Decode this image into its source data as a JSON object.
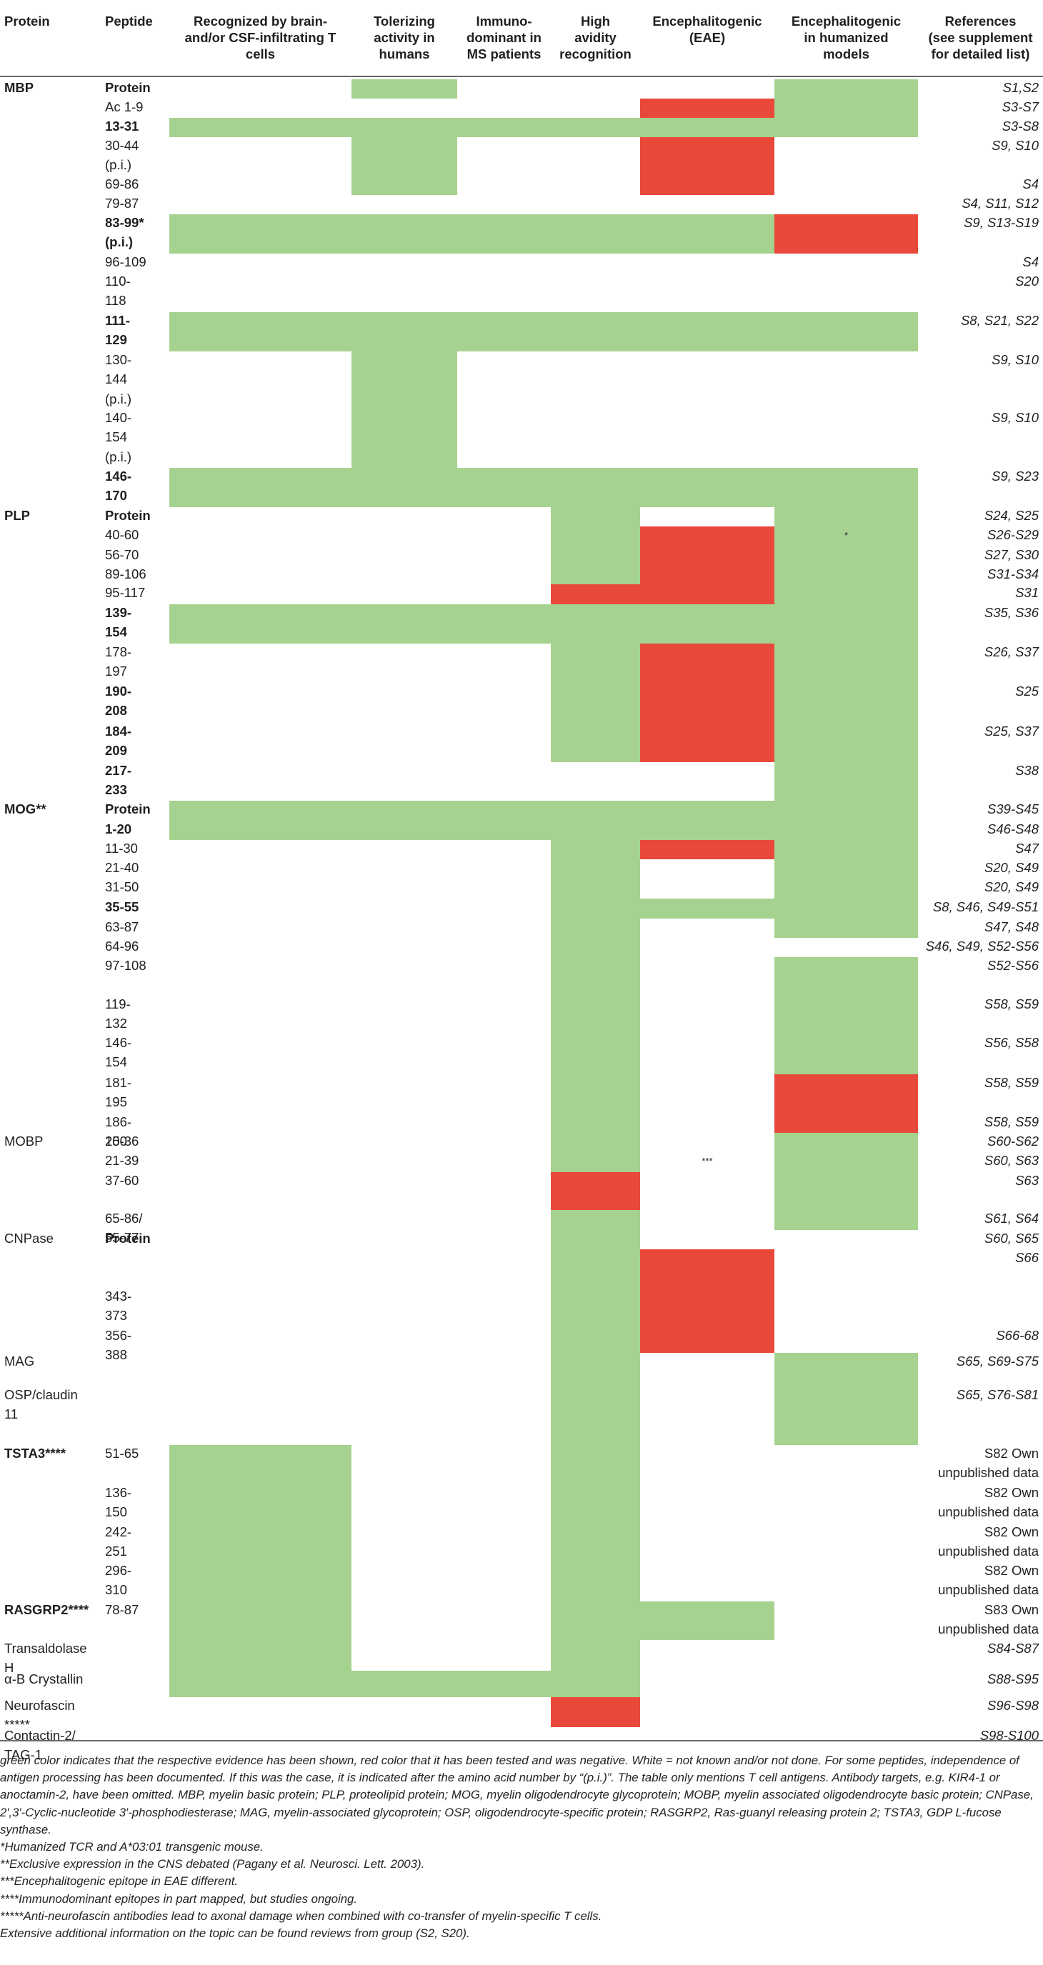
{
  "colors": {
    "positive": "#a6d28f",
    "negative": "#e8493a"
  },
  "header": {
    "protein": "Protein",
    "peptide": "Peptide",
    "c1": [
      "Recognized by brain-",
      "and/or CSF-infiltrating T",
      "cells"
    ],
    "c2": [
      "Tolerizing",
      "activity in",
      "humans"
    ],
    "c3": [
      "Immuno-",
      "dominant in",
      "MS patients"
    ],
    "c4": [
      "High",
      "avidity",
      "recognition"
    ],
    "c5": [
      "Encephalitogenic",
      "(EAE)"
    ],
    "c6": [
      "Encephalitogenic",
      "in humanized",
      "models"
    ],
    "c7": [
      "References",
      "(see supplement",
      "for detailed list)"
    ]
  },
  "rows": [
    {
      "protein": "MBP",
      "pb": true,
      "peptide": "Protein",
      "bold": true,
      "refs": "S1,S2",
      "cells": "0g000ggr0g00"
    },
    {
      "peptide": "Ac 1-9",
      "refs": "S3-S7",
      "cells": "0000rgg00g00"
    },
    {
      "peptide": "13-31",
      "bold": true,
      "refs": "S3-S8",
      "cells": "gggggggg0g00"
    },
    {
      "peptide": [
        "30-44",
        "(p.i.)"
      ],
      "refs": "S9, S10",
      "cells": "0g00r00g00"
    },
    {
      "peptide": "69-86",
      "refs": "S4",
      "cells": "0g00r00g00"
    },
    {
      "peptide": "79-87",
      "refs": "S4, S11, S12",
      "cells": "0000000g00"
    },
    {
      "peptide": [
        "83-99*",
        "(p.i.)"
      ],
      "bold": true,
      "refs": "S9, S13-S19",
      "cells": "gggggr0gg"
    },
    {
      "peptide": "96-109",
      "refs": "S4",
      "cells": "0000000g00"
    },
    {
      "peptide": [
        "110-",
        "118"
      ],
      "refs": "S20",
      "cells": "0000000g00"
    },
    {
      "peptide": [
        "111-",
        "129"
      ],
      "bold": true,
      "refs": "S8, S21, S22",
      "cells": "ggggggggg"
    },
    {
      "peptide": [
        "130-",
        "144",
        "(p.i.)"
      ],
      "refs": "S9, S10",
      "cells": "0g000000"
    },
    {
      "peptide": [
        "140-",
        "154",
        "(p.i.)"
      ],
      "refs": "S9, S10",
      "cells": "0g000000"
    },
    {
      "peptide": [
        "146-",
        "170"
      ],
      "bold": true,
      "refs": "S9, S23",
      "cells": "gggggggg0"
    },
    {
      "protein": "PLP",
      "pb": true,
      "peptide": "Protein",
      "bold": true,
      "refs": "S24, S25",
      "cells": "000g0g0"
    },
    {
      "peptide": "40-60",
      "refs": "S26-S29",
      "cells": "000grgg",
      "mark6": "*"
    },
    {
      "peptide": "56-70",
      "refs": "S27, S30",
      "cells": "000grg0"
    },
    {
      "peptide": "89-106",
      "refs": "S31-S34",
      "cells": "000grg0"
    },
    {
      "peptide": "95-117",
      "refs": "S31",
      "cells": "000rrg0"
    },
    {
      "peptide": [
        "139-",
        "154"
      ],
      "bold": true,
      "refs": "S35, S36",
      "cells": "ggggggg"
    },
    {
      "peptide": [
        "178-",
        "197"
      ],
      "refs": "S26, S37",
      "cells": "000grg0"
    },
    {
      "peptide": [
        "190-",
        "208"
      ],
      "bold": true,
      "refs": "S25",
      "cells": "000grg0"
    },
    {
      "peptide": [
        "184-",
        "209"
      ],
      "bold": true,
      "refs": "S25, S37",
      "cells": "000grg0"
    },
    {
      "peptide": [
        "217-",
        "233"
      ],
      "bold": true,
      "refs": "S38",
      "cells": "00000g0"
    },
    {
      "protein": "MOG**",
      "pb": true,
      "peptide": "Protein",
      "bold": true,
      "refs": "S39-S45",
      "cells": "gggggg0"
    },
    {
      "peptide": "1-20",
      "bold": true,
      "refs": "S46-S48",
      "cells": "gggggg0"
    },
    {
      "peptide": "11-30",
      "refs": "S47",
      "cells": "000grg0"
    },
    {
      "peptide": "21-40",
      "refs": "S20, S49",
      "cells": "000g0g0"
    },
    {
      "peptide": "31-50",
      "refs": "S20, S49",
      "cells": "000g0g0"
    },
    {
      "peptide": "35-55",
      "bold": true,
      "refs": "S8, S46, S49-S51",
      "cells": "000ggg0"
    },
    {
      "peptide": "63-87",
      "refs": "S47, S48",
      "cells": "000g0g0"
    },
    {
      "peptide": "64-96",
      "refs": "S46, S49, S52-S56",
      "cells": "000g0000"
    },
    {
      "peptide": "97-108",
      "refs": "S52-S56",
      "cells": "000g0gg"
    },
    {
      "peptide": [
        "119-",
        "132"
      ],
      "refs": "S58, S59",
      "cells": "000g0g0"
    },
    {
      "peptide": [
        "146-",
        "154"
      ],
      "refs": "S56, S58",
      "cells": "000g0g0"
    },
    {
      "peptide": [
        "181-",
        "195"
      ],
      "refs": "S58, S59",
      "cells": "000g0r0"
    },
    {
      "peptide": [
        "186-",
        "200"
      ],
      "refs": "S58, S59",
      "cells": "000g0r0"
    },
    {
      "protein": "MOBP",
      "peptide": "15-36",
      "refs": "S60-S62",
      "cells": "000g0gg"
    },
    {
      "peptide": "21-39",
      "refs": "S60, S63",
      "cells": "000g0g0",
      "mark5": "***"
    },
    {
      "peptide": "37-60",
      "refs": "S63",
      "cells": "000r0g0"
    },
    {
      "peptide": [
        "65-86/",
        "55-77"
      ],
      "refs": "S61, S64",
      "cells": "000g0gg"
    },
    {
      "protein": "CNPase",
      "peptide": "Protein",
      "bold": true,
      "refs": "S60, S65",
      "cells": "000g000"
    },
    {
      "peptide": "",
      "refs": "S66",
      "cells": "000gr00"
    },
    {
      "peptide": [
        "343-",
        "373"
      ],
      "refs": "",
      "cells": "000gr00"
    },
    {
      "peptide": [
        "356-",
        "388"
      ],
      "refs": "S66-68",
      "cells": "000gr00"
    },
    {
      "protein": "MAG",
      "peptide": "",
      "refs": "S65, S69-S75",
      "cells": "000g0g0"
    },
    {
      "protein": [
        "OSP/claudin",
        "11"
      ],
      "peptide": "",
      "refs": "S65, S76-S81",
      "cells": "000g0g0"
    },
    {
      "protein": "TSTA3****",
      "pb": true,
      "peptide": "51-65",
      "refs": [
        "S82 Own",
        "unpublished data"
      ],
      "cells": "g00g000"
    },
    {
      "peptide": [
        "136-",
        "150"
      ],
      "refs": [
        "S82 Own",
        "unpublished data"
      ],
      "cells": "g00g000"
    },
    {
      "peptide": [
        "242-",
        "251"
      ],
      "refs": [
        "S82 Own",
        "unpublished data"
      ],
      "cells": "g00g000"
    },
    {
      "peptide": [
        "296-",
        "310"
      ],
      "refs": [
        "S82 Own",
        "unpublished data"
      ],
      "cells": "g00g000"
    },
    {
      "protein": "RASGRP2****",
      "pb": true,
      "peptide": "78-87",
      "refs": [
        "S83 Own",
        "unpublished data"
      ],
      "cells": "g00gg00"
    },
    {
      "protein": [
        "Transaldolase",
        "H"
      ],
      "peptide": "",
      "refs": "S84-S87",
      "cells": "g00g000"
    },
    {
      "protein": "α-B Crystallin",
      "peptide": "",
      "refs": "S88-S95",
      "cells": "gggg000"
    },
    {
      "protein": [
        "Neurofascin",
        "*****"
      ],
      "peptide": "",
      "refs": "S96-S98",
      "cells": "000r000"
    },
    {
      "protein": [
        "Contactin-2/",
        "TAG-1"
      ],
      "peptide": "",
      "refs": "S98-S100",
      "cells": "0000000"
    }
  ],
  "footnotes": [
    "green color indicates that the respective evidence has been shown, red color that it has been tested and was negative. White = not known and/or not done. For some peptides, independence of antigen processing has been documented. If this was the case, it is indicated after the amino acid number by “(p.i.)”. The table only mentions T cell antigens. Antibody targets, e.g. KIR4-1 or anoctamin-2, have been omitted. MBP, myelin basic protein; PLP, proteolipid protein; MOG, myelin oligodendrocyte glycoprotein; MOBP, myelin associated oligodendrocyte basic protein; CNPase, 2′,3′-Cyclic-nucleotide 3′-phosphodiesterase; MAG, myelin-associated glycoprotein; OSP, oligodendrocyte-specific protein; RASGRP2, Ras-guanyl releasing protein 2; TSTA3, GDP L-fucose synthase.",
    "*Humanized TCR and A*03:01 transgenic mouse.",
    "**Exclusive expression in the CNS debated (Pagany et al. Neurosci. Lett. 2003).",
    "***Encephalitogenic epitope in EAE different.",
    "****Immunodominant epitopes in part mapped, but studies ongoing.",
    "*****Anti-neurofascin antibodies lead to axonal damage when combined with co-transfer of myelin-specific T cells.",
    "Extensive additional information on the topic can be found reviews from group (S2, S20)."
  ]
}
